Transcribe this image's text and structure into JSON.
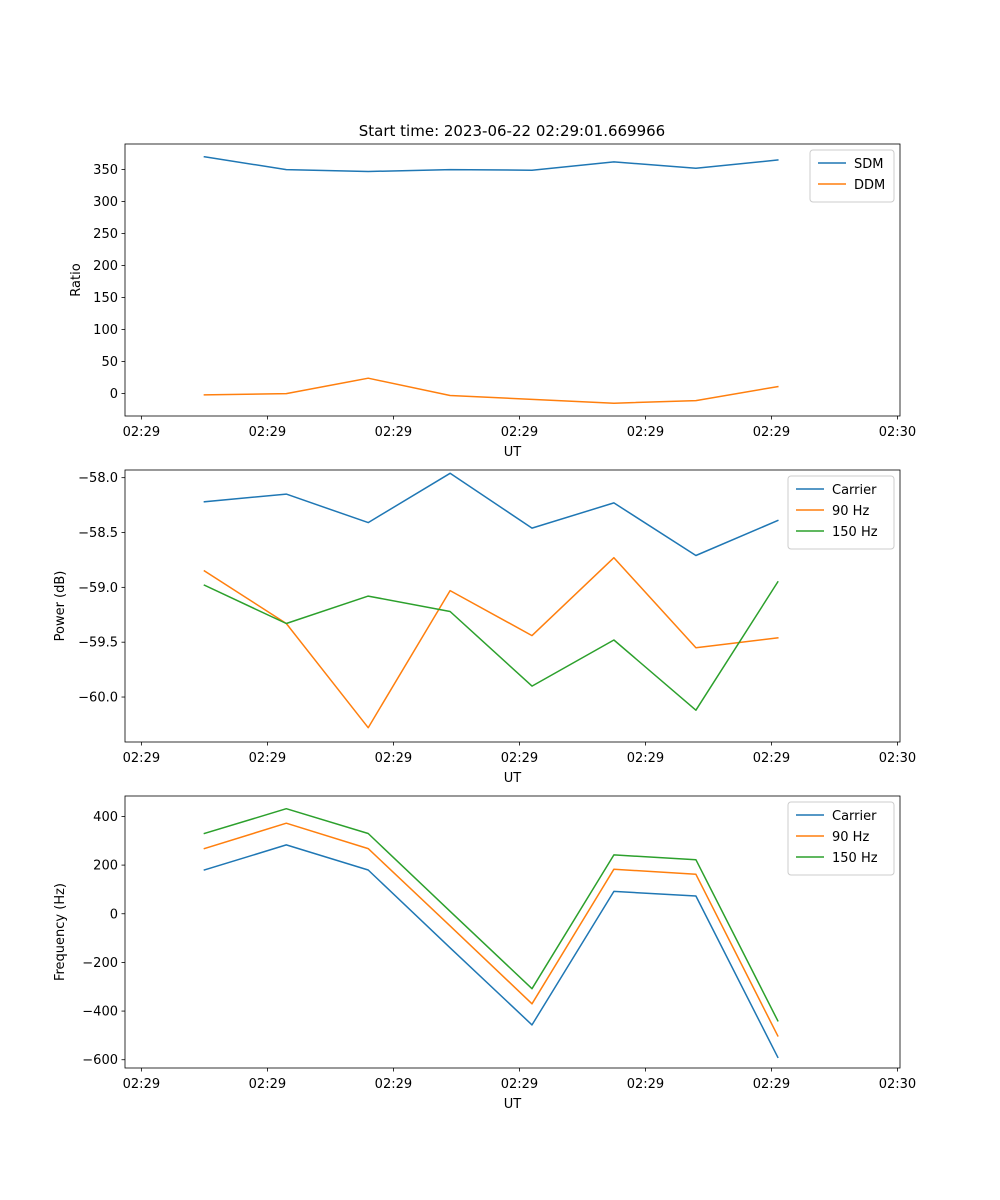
{
  "figure_title": "Start time: 2023-06-22 02:29:01.669966",
  "colors": {
    "blue": "#1f77b4",
    "orange": "#ff7f0e",
    "green": "#2ca02c",
    "axis": "#000000",
    "legend_border": "#cccccc"
  },
  "x_tick_labels": [
    "02:29",
    "02:29",
    "02:29",
    "02:29",
    "02:29",
    "02:29",
    "02:30"
  ],
  "chart_data": [
    {
      "type": "line",
      "title": "",
      "xlabel": "UT",
      "ylabel": "Ratio",
      "x_tick_positions": [
        0,
        1,
        2,
        3,
        4,
        5,
        6
      ],
      "xlim": [
        -0.13,
        6.02
      ],
      "ylim": [
        -35,
        390
      ],
      "yticks": [
        0,
        50,
        100,
        150,
        200,
        250,
        300,
        350
      ],
      "ytick_labels": [
        "0",
        "50",
        "100",
        "150",
        "200",
        "250",
        "300",
        "350"
      ],
      "grid": false,
      "legend_position": "upper right",
      "x": [
        0.5,
        1.15,
        1.8,
        2.45,
        3.1,
        3.75,
        4.4,
        5.05
      ],
      "series": [
        {
          "name": "SDM",
          "color": "#1f77b4",
          "values": [
            370,
            350,
            347,
            350,
            349,
            362,
            352,
            365
          ]
        },
        {
          "name": "DDM",
          "color": "#ff7f0e",
          "values": [
            -2,
            0,
            24,
            -3,
            -9,
            -15,
            -11,
            11
          ]
        }
      ]
    },
    {
      "type": "line",
      "title": "",
      "xlabel": "UT",
      "ylabel": "Power (dB)",
      "x_tick_positions": [
        0,
        1,
        2,
        3,
        4,
        5,
        6
      ],
      "xlim": [
        -0.13,
        6.02
      ],
      "ylim": [
        -60.41,
        -57.93
      ],
      "yticks": [
        -60.0,
        -59.5,
        -59.0,
        -58.5,
        -58.0
      ],
      "ytick_labels": [
        "−60.0",
        "−59.5",
        "−59.0",
        "−58.5",
        "−58.0"
      ],
      "grid": false,
      "legend_position": "upper right",
      "x": [
        0.5,
        1.15,
        1.8,
        2.45,
        3.1,
        3.75,
        4.4,
        5.05
      ],
      "series": [
        {
          "name": "Carrier",
          "color": "#1f77b4",
          "values": [
            -58.22,
            -58.15,
            -58.41,
            -57.96,
            -58.46,
            -58.23,
            -58.71,
            -58.39
          ]
        },
        {
          "name": "90 Hz",
          "color": "#ff7f0e",
          "values": [
            -58.85,
            -59.33,
            -60.28,
            -59.03,
            -59.44,
            -58.73,
            -59.55,
            -59.46
          ]
        },
        {
          "name": "150 Hz",
          "color": "#2ca02c",
          "values": [
            -58.98,
            -59.33,
            -59.08,
            -59.22,
            -59.9,
            -59.48,
            -60.12,
            -58.95
          ]
        }
      ]
    },
    {
      "type": "line",
      "title": "",
      "xlabel": "UT",
      "ylabel": "Frequency (Hz)",
      "x_tick_positions": [
        0,
        1,
        2,
        3,
        4,
        5,
        6
      ],
      "xlim": [
        -0.13,
        6.02
      ],
      "ylim": [
        -634,
        484
      ],
      "yticks": [
        -600,
        -400,
        -200,
        0,
        200,
        400
      ],
      "ytick_labels": [
        "−600",
        "−400",
        "−200",
        "0",
        "200",
        "400"
      ],
      "grid": false,
      "legend_position": "upper right",
      "x": [
        0.5,
        1.15,
        1.8,
        2.45,
        3.1,
        3.75,
        4.4,
        5.05
      ],
      "series": [
        {
          "name": "Carrier",
          "color": "#1f77b4",
          "values": [
            180,
            283,
            180,
            -140,
            -457,
            92,
            73,
            -590
          ]
        },
        {
          "name": "90 Hz",
          "color": "#ff7f0e",
          "values": [
            268,
            372,
            268,
            -50,
            -370,
            183,
            162,
            -502
          ]
        },
        {
          "name": "150 Hz",
          "color": "#2ca02c",
          "values": [
            330,
            432,
            330,
            10,
            -308,
            242,
            222,
            -440
          ]
        }
      ]
    }
  ]
}
